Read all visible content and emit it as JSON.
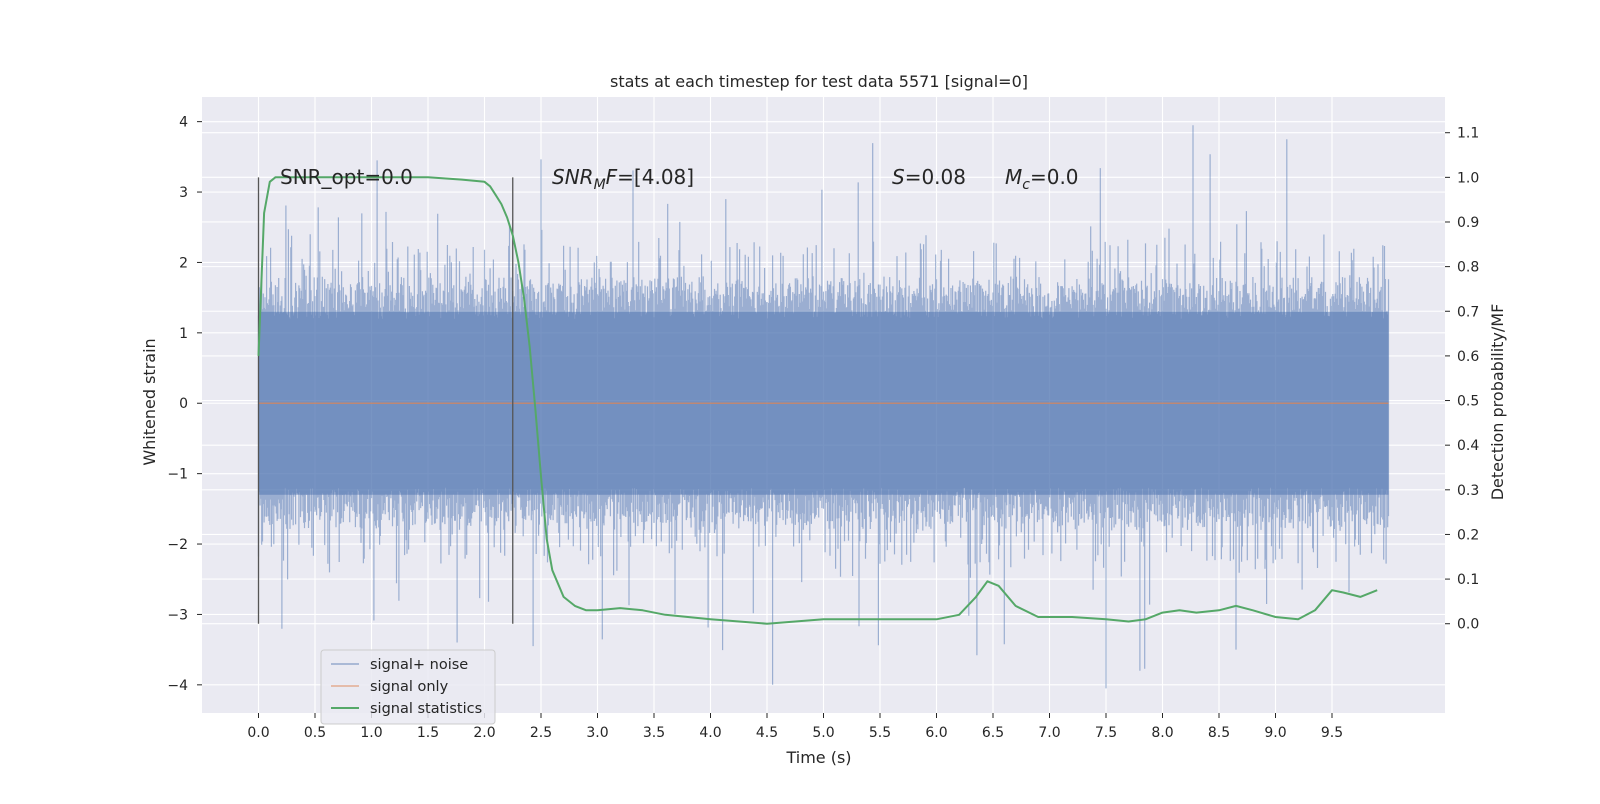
{
  "chart_data": {
    "type": "line",
    "title": "stats at each timestep for test data 5571 [signal=0]",
    "xlabel": "Time (s)",
    "ylabel_left": "Whitened strain",
    "ylabel_right": "Detection probability/MF",
    "xlim": [
      -0.5,
      10.5
    ],
    "ylim_left": [
      -4.4,
      4.35
    ],
    "ylim_right": [
      -0.2,
      1.18
    ],
    "x_ticks": [
      "0.0",
      "0.5",
      "1.0",
      "1.5",
      "2.0",
      "2.5",
      "3.0",
      "3.5",
      "4.0",
      "4.5",
      "5.0",
      "5.5",
      "6.0",
      "6.5",
      "7.0",
      "7.5",
      "8.0",
      "8.5",
      "9.0",
      "9.5"
    ],
    "y_ticks_left": [
      "4",
      "3",
      "2",
      "1",
      "0",
      "−1",
      "−2",
      "−3",
      "−4"
    ],
    "y_ticks_right": [
      "1.1",
      "1.0",
      "0.9",
      "0.8",
      "0.7",
      "0.6",
      "0.5",
      "0.4",
      "0.3",
      "0.2",
      "0.1",
      "0.0"
    ],
    "grid": true,
    "annotations": {
      "snr_opt": "SNR_opt=0.0",
      "snr_mf_main": "SNR",
      "snr_mf_sub": "M",
      "snr_mf_rest": "F",
      "snr_mf_value": "=[4.08]",
      "s_label": "S",
      "s_value": "=0.08",
      "mc_label": "M",
      "mc_sub": "c",
      "mc_value": "=0.0"
    },
    "vertical_markers_s": [
      0.0,
      2.25
    ],
    "legend": {
      "position": "lower-left",
      "entries": [
        "signal+ noise",
        "signal only",
        "signal statistics"
      ]
    },
    "series": [
      {
        "name": "signal+ noise",
        "axis": "left",
        "style": "noise band",
        "x_range": [
          0.0,
          10.0
        ],
        "core_range": [
          -1.3,
          1.3
        ],
        "peak_max": 3.95,
        "peak_min": -4.05
      },
      {
        "name": "signal only",
        "axis": "left",
        "x": [
          0.0,
          10.0
        ],
        "y": [
          0.0,
          0.0
        ]
      },
      {
        "name": "signal statistics",
        "axis": "right",
        "x": [
          0.0,
          0.05,
          0.1,
          0.15,
          0.2,
          0.3,
          0.5,
          1.0,
          1.5,
          1.8,
          2.0,
          2.05,
          2.1,
          2.15,
          2.2,
          2.25,
          2.3,
          2.35,
          2.4,
          2.45,
          2.5,
          2.55,
          2.6,
          2.7,
          2.8,
          2.9,
          3.0,
          3.2,
          3.4,
          3.6,
          4.0,
          4.5,
          5.0,
          5.5,
          6.0,
          6.2,
          6.35,
          6.45,
          6.55,
          6.7,
          6.9,
          7.2,
          7.5,
          7.7,
          7.85,
          8.0,
          8.15,
          8.3,
          8.5,
          8.65,
          8.8,
          9.0,
          9.2,
          9.35,
          9.5,
          9.6,
          9.75,
          9.9
        ],
        "y": [
          0.6,
          0.92,
          0.99,
          1.0,
          1.0,
          1.0,
          1.0,
          1.0,
          1.0,
          0.995,
          0.99,
          0.98,
          0.96,
          0.94,
          0.91,
          0.87,
          0.81,
          0.73,
          0.62,
          0.48,
          0.33,
          0.19,
          0.12,
          0.06,
          0.04,
          0.03,
          0.03,
          0.035,
          0.03,
          0.02,
          0.01,
          0.0,
          0.01,
          0.01,
          0.01,
          0.02,
          0.06,
          0.095,
          0.085,
          0.04,
          0.015,
          0.015,
          0.01,
          0.005,
          0.01,
          0.025,
          0.03,
          0.025,
          0.03,
          0.04,
          0.03,
          0.015,
          0.01,
          0.03,
          0.075,
          0.07,
          0.06,
          0.075
        ]
      }
    ]
  }
}
